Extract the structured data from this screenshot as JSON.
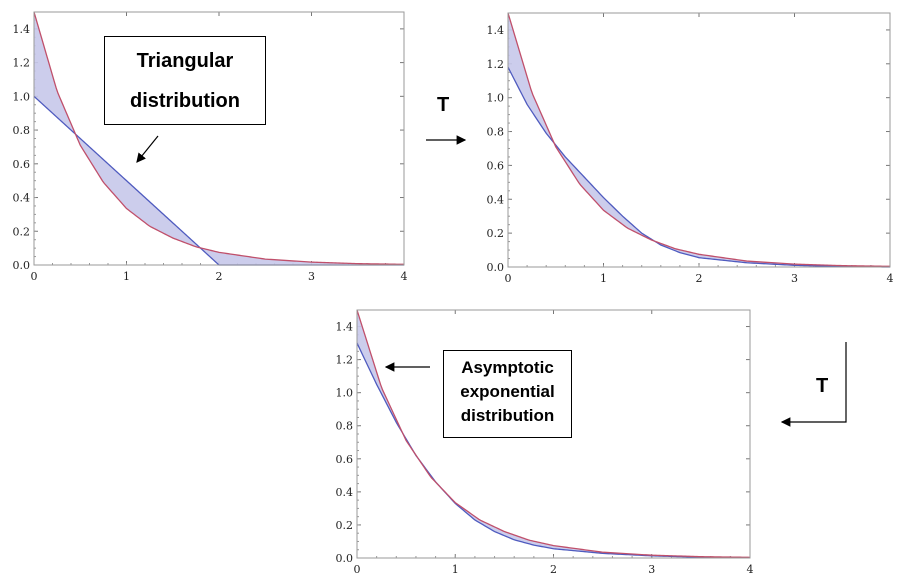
{
  "colors": {
    "curve": "#c0506b",
    "line": "#4f5bbf",
    "fill": "#c7c8ea",
    "frame": "#9a9a9a"
  },
  "annotations": {
    "callout_triangular": [
      "Triangular",
      "distribution"
    ],
    "callout_exponential": [
      "Asymptotic",
      "exponential",
      "distribution"
    ],
    "operator_top": "T",
    "operator_right": "T"
  },
  "chart_data": [
    {
      "type": "line",
      "panel": "top-left",
      "xlim": [
        0,
        4
      ],
      "ylim": [
        0,
        1.5
      ],
      "x_ticks": [
        "0",
        "1",
        "2",
        "3",
        "4"
      ],
      "y_ticks": [
        "0.0",
        "0.2",
        "0.4",
        "0.6",
        "0.8",
        "1.0",
        "1.2",
        "1.4"
      ],
      "series": [
        {
          "x": [
            0,
            0.25,
            0.5,
            0.75,
            1.0,
            1.25,
            1.5,
            1.75,
            2.0,
            2.5,
            3.0,
            3.5,
            4.0
          ],
          "y": [
            1.5,
            1.03,
            0.71,
            0.49,
            0.335,
            0.23,
            0.16,
            0.108,
            0.075,
            0.035,
            0.017,
            0.008,
            0.004
          ]
        },
        {
          "x": [
            0,
            2.0,
            4.0
          ],
          "y": [
            1.0,
            0.0,
            0.0
          ]
        }
      ]
    },
    {
      "type": "line",
      "panel": "top-right",
      "xlim": [
        0,
        4
      ],
      "ylim": [
        0,
        1.5
      ],
      "x_ticks": [
        "0",
        "1",
        "2",
        "3",
        "4"
      ],
      "y_ticks": [
        "0.0",
        "0.2",
        "0.4",
        "0.6",
        "0.8",
        "1.0",
        "1.2",
        "1.4"
      ],
      "series": [
        {
          "x": [
            0,
            0.25,
            0.5,
            0.75,
            1.0,
            1.25,
            1.5,
            1.75,
            2.0,
            2.5,
            3.0,
            3.5,
            4.0
          ],
          "y": [
            1.5,
            1.03,
            0.71,
            0.49,
            0.335,
            0.23,
            0.16,
            0.108,
            0.075,
            0.035,
            0.017,
            0.008,
            0.004
          ]
        },
        {
          "x": [
            0,
            0.2,
            0.4,
            0.6,
            0.8,
            1.0,
            1.2,
            1.4,
            1.6,
            1.8,
            2.0,
            2.5,
            3.0,
            3.5,
            4.0
          ],
          "y": [
            1.18,
            0.96,
            0.79,
            0.65,
            0.53,
            0.41,
            0.3,
            0.2,
            0.13,
            0.085,
            0.055,
            0.025,
            0.01,
            0.003,
            0.0
          ]
        }
      ]
    },
    {
      "type": "line",
      "panel": "bottom",
      "xlim": [
        0,
        4
      ],
      "ylim": [
        0,
        1.5
      ],
      "x_ticks": [
        "0",
        "1",
        "2",
        "3",
        "4"
      ],
      "y_ticks": [
        "0.0",
        "0.2",
        "0.4",
        "0.6",
        "0.8",
        "1.0",
        "1.2",
        "1.4"
      ],
      "series": [
        {
          "x": [
            0,
            0.25,
            0.5,
            0.75,
            1.0,
            1.25,
            1.5,
            1.75,
            2.0,
            2.5,
            3.0,
            3.5,
            4.0
          ],
          "y": [
            1.5,
            1.03,
            0.71,
            0.49,
            0.335,
            0.23,
            0.16,
            0.108,
            0.075,
            0.035,
            0.017,
            0.008,
            0.004
          ]
        },
        {
          "x": [
            0,
            0.2,
            0.4,
            0.6,
            0.8,
            1.0,
            1.2,
            1.4,
            1.6,
            1.8,
            2.0,
            2.5,
            3.0,
            3.5,
            4.0
          ],
          "y": [
            1.3,
            1.05,
            0.82,
            0.62,
            0.46,
            0.33,
            0.23,
            0.16,
            0.11,
            0.078,
            0.056,
            0.028,
            0.013,
            0.005,
            0.001
          ]
        }
      ]
    }
  ]
}
